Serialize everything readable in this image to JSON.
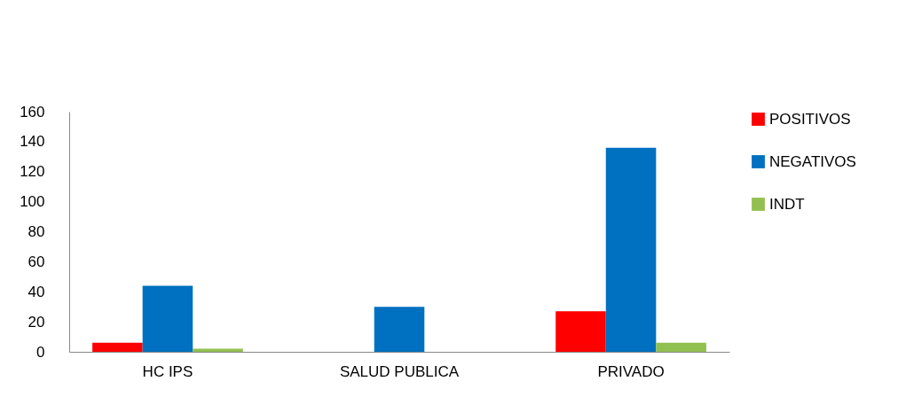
{
  "chart_data": {
    "type": "bar",
    "categories": [
      "HC IPS",
      "SALUD PUBLICA",
      "PRIVADO"
    ],
    "series": [
      {
        "name": "POSITIVOS",
        "color": "#ff0000",
        "values": [
          6,
          0,
          27
        ]
      },
      {
        "name": "NEGATIVOS",
        "color": "#0070c0",
        "values": [
          44,
          30,
          136
        ]
      },
      {
        "name": "INDT",
        "color": "#92c050",
        "values": [
          2,
          0,
          6
        ]
      }
    ],
    "ylim": [
      0,
      160
    ],
    "yticks": [
      0,
      20,
      40,
      60,
      80,
      100,
      120,
      140,
      160
    ],
    "grid": false,
    "legend": "right"
  }
}
